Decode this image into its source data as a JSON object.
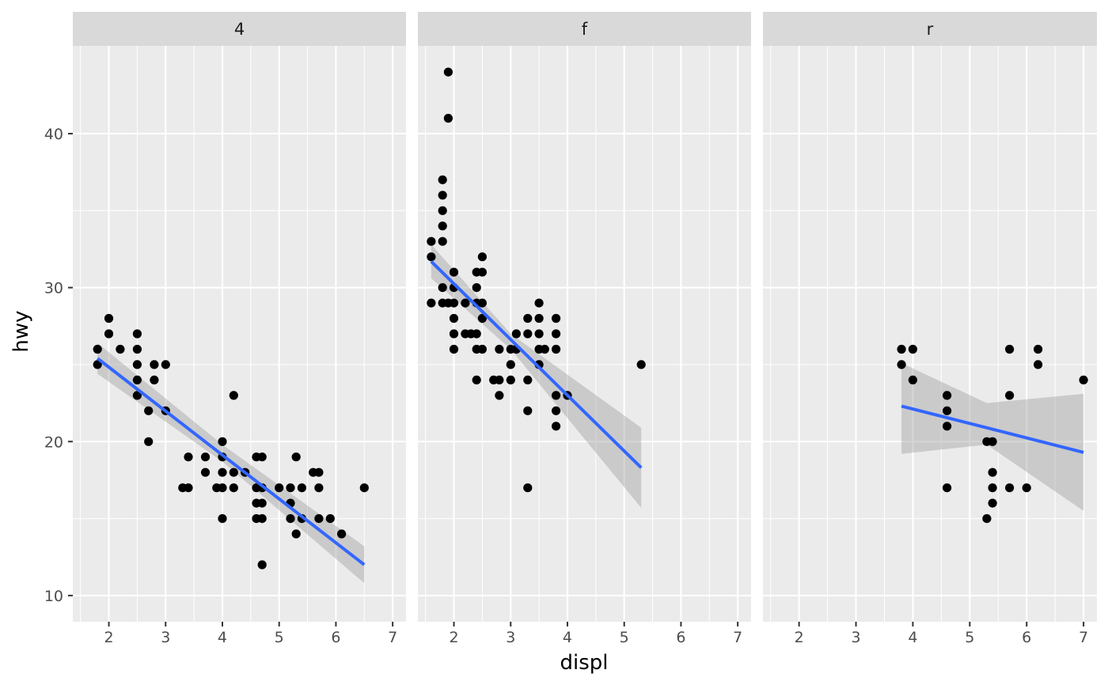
{
  "chart_data": {
    "type": "scatter",
    "xlabel": "displ",
    "ylabel": "hwy",
    "xlim": [
      1.6,
      7.0
    ],
    "ylim": [
      10,
      44
    ],
    "x_ticks": [
      "2",
      "3",
      "4",
      "5",
      "6",
      "7"
    ],
    "y_ticks": [
      "10",
      "20",
      "30",
      "40"
    ],
    "grid": true,
    "legend": "none",
    "colors": {
      "panel_bg": "#ebebeb",
      "strip_bg": "#d9d9d9",
      "grid": "#ffffff",
      "point": "#000000",
      "fit_line": "#3366ff",
      "ribbon": "#999999"
    },
    "facets": [
      {
        "label": "4",
        "points": [
          [
            1.8,
            26
          ],
          [
            1.8,
            25
          ],
          [
            2.0,
            28
          ],
          [
            2.0,
            27
          ],
          [
            2.2,
            26
          ],
          [
            2.5,
            27
          ],
          [
            2.5,
            26
          ],
          [
            2.5,
            25
          ],
          [
            2.5,
            24
          ],
          [
            2.5,
            23
          ],
          [
            2.7,
            22
          ],
          [
            2.7,
            20
          ],
          [
            2.8,
            25
          ],
          [
            2.8,
            24
          ],
          [
            3.0,
            25
          ],
          [
            3.0,
            22
          ],
          [
            3.3,
            17
          ],
          [
            3.4,
            19
          ],
          [
            3.4,
            17
          ],
          [
            3.7,
            19
          ],
          [
            3.7,
            18
          ],
          [
            3.9,
            17
          ],
          [
            4.0,
            20
          ],
          [
            4.0,
            19
          ],
          [
            4.0,
            18
          ],
          [
            4.0,
            17
          ],
          [
            4.0,
            15
          ],
          [
            4.2,
            23
          ],
          [
            4.2,
            18
          ],
          [
            4.2,
            17
          ],
          [
            4.4,
            18
          ],
          [
            4.6,
            19
          ],
          [
            4.6,
            17
          ],
          [
            4.6,
            16
          ],
          [
            4.6,
            15
          ],
          [
            4.7,
            19
          ],
          [
            4.7,
            17
          ],
          [
            4.7,
            16
          ],
          [
            4.7,
            15
          ],
          [
            4.7,
            12
          ],
          [
            5.0,
            17
          ],
          [
            5.2,
            17
          ],
          [
            5.2,
            16
          ],
          [
            5.2,
            15
          ],
          [
            5.3,
            19
          ],
          [
            5.3,
            14
          ],
          [
            5.4,
            17
          ],
          [
            5.4,
            15
          ],
          [
            5.6,
            18
          ],
          [
            5.7,
            18
          ],
          [
            5.7,
            17
          ],
          [
            5.7,
            15
          ],
          [
            5.9,
            15
          ],
          [
            6.1,
            14
          ],
          [
            6.5,
            17
          ]
        ],
        "fit": {
          "x": [
            1.8,
            6.5
          ],
          "y": [
            25.4,
            12.0
          ]
        },
        "ribbon": {
          "x": [
            1.8,
            4.0,
            6.5
          ],
          "lower": [
            24.4,
            18.7,
            10.8
          ],
          "upper": [
            26.4,
            19.8,
            13.2
          ]
        }
      },
      {
        "label": "f",
        "points": [
          [
            1.6,
            33
          ],
          [
            1.6,
            32
          ],
          [
            1.6,
            29
          ],
          [
            1.8,
            37
          ],
          [
            1.8,
            36
          ],
          [
            1.8,
            35
          ],
          [
            1.8,
            34
          ],
          [
            1.8,
            33
          ],
          [
            1.8,
            30
          ],
          [
            1.8,
            29
          ],
          [
            1.9,
            44
          ],
          [
            1.9,
            41
          ],
          [
            1.9,
            29
          ],
          [
            2.0,
            31
          ],
          [
            2.0,
            30
          ],
          [
            2.0,
            29
          ],
          [
            2.0,
            28
          ],
          [
            2.0,
            27
          ],
          [
            2.0,
            26
          ],
          [
            2.2,
            29
          ],
          [
            2.2,
            27
          ],
          [
            2.3,
            27
          ],
          [
            2.4,
            31
          ],
          [
            2.4,
            30
          ],
          [
            2.4,
            29
          ],
          [
            2.4,
            27
          ],
          [
            2.4,
            26
          ],
          [
            2.4,
            24
          ],
          [
            2.5,
            32
          ],
          [
            2.5,
            31
          ],
          [
            2.5,
            29
          ],
          [
            2.5,
            28
          ],
          [
            2.5,
            26
          ],
          [
            2.7,
            24
          ],
          [
            2.8,
            26
          ],
          [
            2.8,
            24
          ],
          [
            2.8,
            23
          ],
          [
            3.0,
            26
          ],
          [
            3.0,
            25
          ],
          [
            3.0,
            24
          ],
          [
            3.1,
            27
          ],
          [
            3.1,
            26
          ],
          [
            3.3,
            28
          ],
          [
            3.3,
            27
          ],
          [
            3.3,
            24
          ],
          [
            3.3,
            22
          ],
          [
            3.3,
            17
          ],
          [
            3.5,
            29
          ],
          [
            3.5,
            28
          ],
          [
            3.5,
            27
          ],
          [
            3.5,
            26
          ],
          [
            3.5,
            25
          ],
          [
            3.6,
            26
          ],
          [
            3.8,
            28
          ],
          [
            3.8,
            27
          ],
          [
            3.8,
            26
          ],
          [
            3.8,
            23
          ],
          [
            3.8,
            22
          ],
          [
            3.8,
            21
          ],
          [
            4.0,
            23
          ],
          [
            5.3,
            25
          ]
        ],
        "fit": {
          "x": [
            1.6,
            5.3
          ],
          "y": [
            31.7,
            18.3
          ]
        },
        "ribbon": {
          "x": [
            1.6,
            3.0,
            5.3
          ],
          "lower": [
            30.6,
            26.0,
            15.7
          ],
          "upper": [
            32.8,
            27.0,
            20.9
          ]
        }
      },
      {
        "label": "r",
        "points": [
          [
            3.8,
            26
          ],
          [
            3.8,
            25
          ],
          [
            4.0,
            26
          ],
          [
            4.0,
            24
          ],
          [
            4.6,
            23
          ],
          [
            4.6,
            22
          ],
          [
            4.6,
            21
          ],
          [
            4.6,
            17
          ],
          [
            5.3,
            20
          ],
          [
            5.3,
            15
          ],
          [
            5.4,
            20
          ],
          [
            5.4,
            18
          ],
          [
            5.4,
            17
          ],
          [
            5.4,
            16
          ],
          [
            5.7,
            26
          ],
          [
            5.7,
            23
          ],
          [
            5.7,
            17
          ],
          [
            6.0,
            17
          ],
          [
            6.2,
            26
          ],
          [
            6.2,
            25
          ],
          [
            7.0,
            24
          ]
        ],
        "fit": {
          "x": [
            3.8,
            7.0
          ],
          "y": [
            22.3,
            19.3
          ]
        },
        "ribbon": {
          "x": [
            3.8,
            5.3,
            7.0
          ],
          "lower": [
            19.2,
            19.8,
            15.5
          ],
          "upper": [
            25.1,
            22.5,
            23.1
          ]
        }
      }
    ]
  }
}
